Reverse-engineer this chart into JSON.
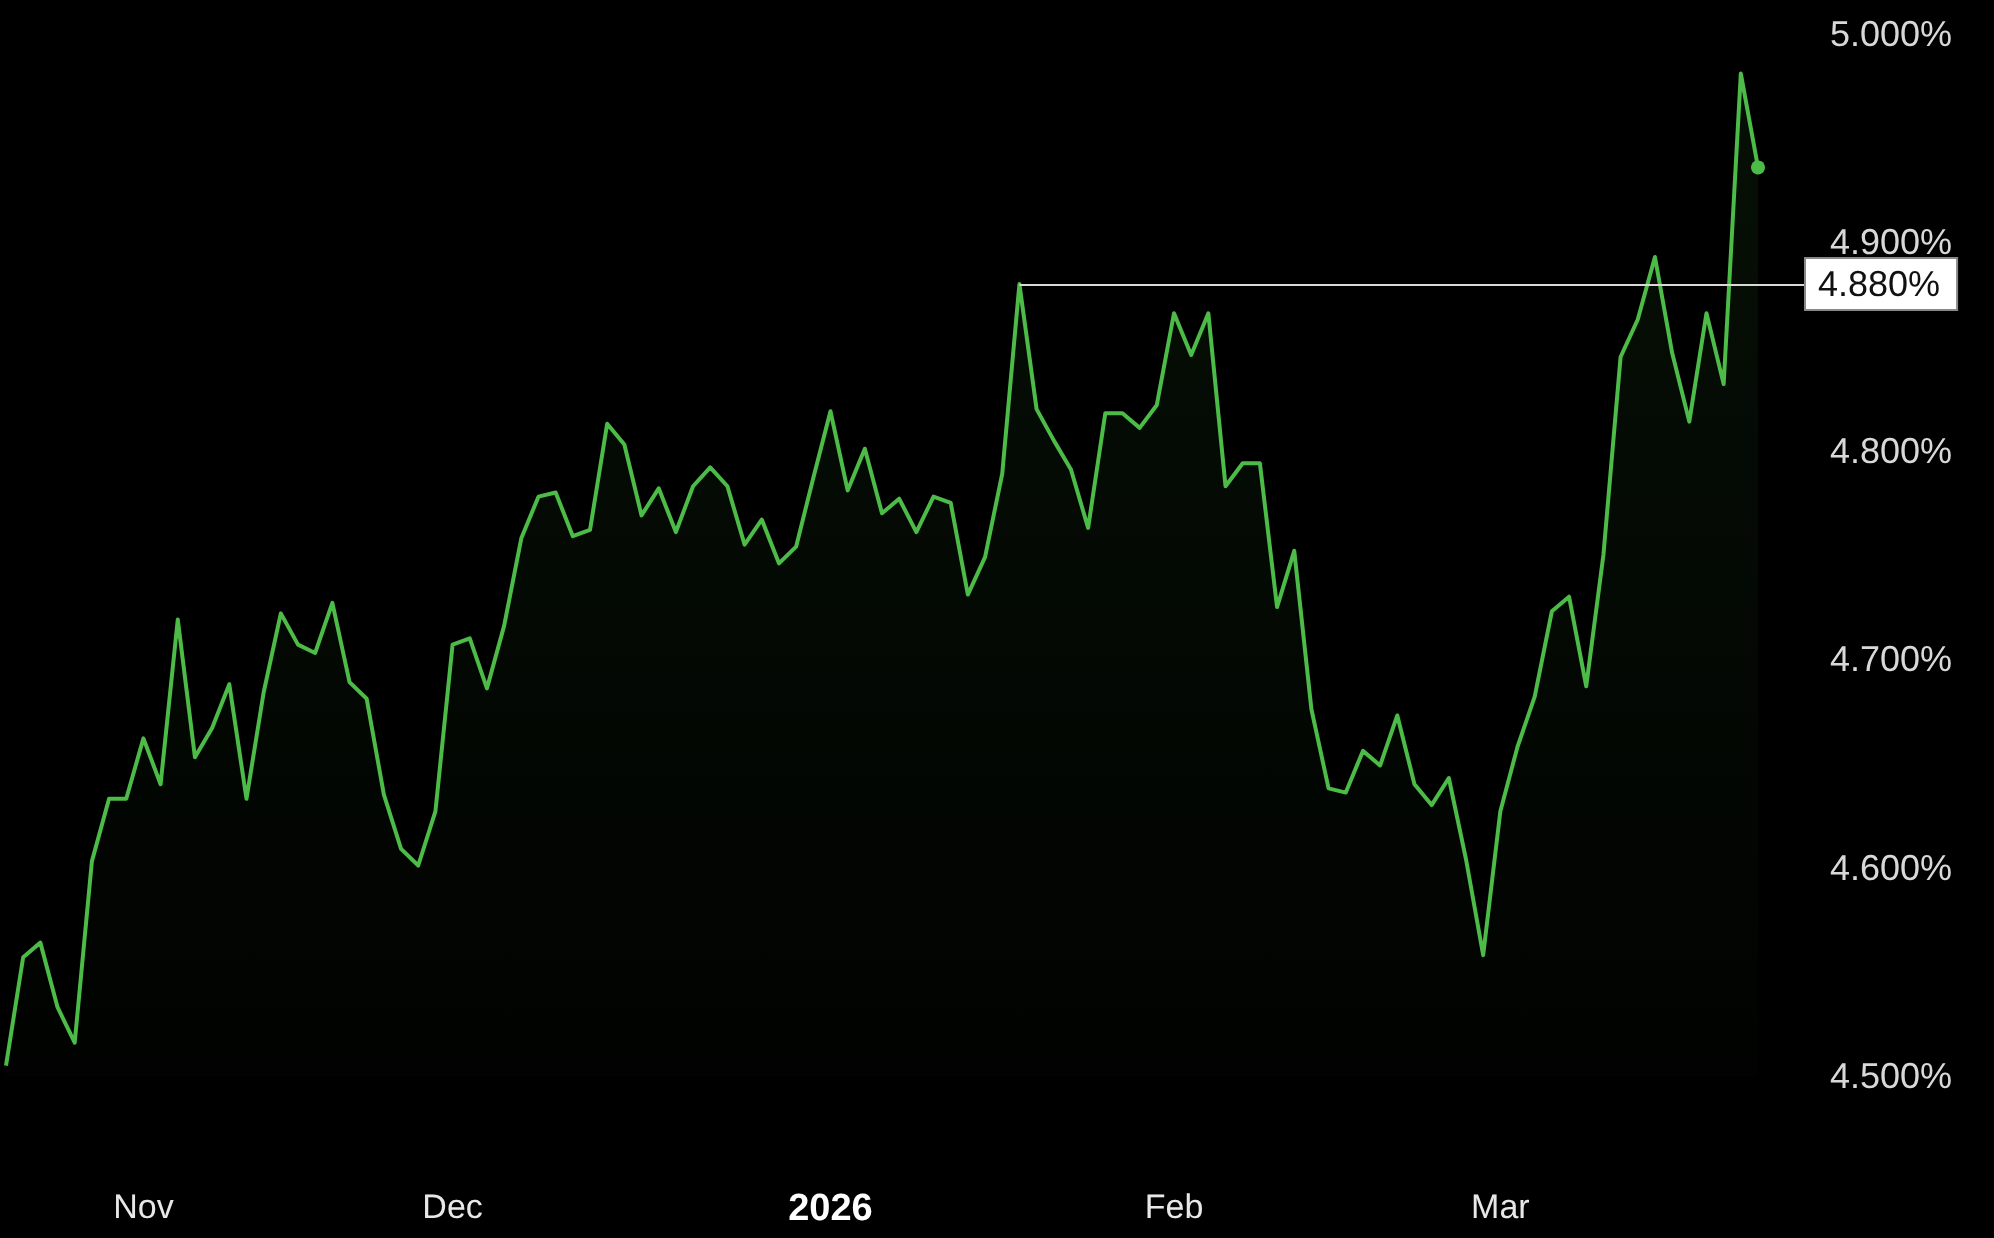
{
  "chart_data": {
    "type": "area",
    "categories": [
      null,
      null,
      null,
      null,
      null,
      null,
      null,
      null,
      "Nov",
      null,
      null,
      null,
      null,
      null,
      null,
      null,
      null,
      null,
      null,
      null,
      null,
      null,
      null,
      null,
      null,
      null,
      "Dec",
      null,
      null,
      null,
      null,
      null,
      null,
      null,
      null,
      null,
      null,
      null,
      null,
      null,
      null,
      null,
      null,
      null,
      null,
      null,
      null,
      null,
      "2026",
      null,
      null,
      null,
      null,
      null,
      null,
      null,
      null,
      null,
      null,
      null,
      null,
      null,
      null,
      null,
      null,
      null,
      null,
      null,
      "Feb",
      null,
      null,
      null,
      null,
      null,
      null,
      null,
      null,
      null,
      null,
      null,
      null,
      null,
      null,
      null,
      null,
      null,
      null,
      "Mar",
      null,
      null,
      null,
      null,
      null,
      null,
      null,
      null,
      null,
      null,
      null,
      null,
      null,
      null,
      null
    ],
    "series": [
      {
        "color": "#4cbb47",
        "values": [
          4.505,
          4.557,
          4.564,
          4.533,
          4.516,
          4.603,
          4.633,
          4.633,
          4.662,
          4.64,
          4.719,
          4.653,
          4.667,
          4.688,
          4.633,
          4.684,
          4.722,
          4.707,
          4.703,
          4.727,
          4.689,
          4.681,
          4.635,
          4.609,
          4.601,
          4.627,
          4.707,
          4.71,
          4.686,
          4.716,
          4.758,
          4.778,
          4.78,
          4.759,
          4.762,
          4.813,
          4.803,
          4.769,
          4.782,
          4.761,
          4.783,
          4.792,
          4.783,
          4.755,
          4.767,
          4.746,
          4.754,
          4.787,
          4.819,
          4.781,
          4.801,
          4.77,
          4.777,
          4.761,
          4.778,
          4.775,
          4.731,
          4.749,
          4.789,
          4.88,
          4.82,
          4.805,
          4.791,
          4.763,
          4.818,
          4.818,
          4.811,
          4.822,
          4.866,
          4.846,
          4.866,
          4.783,
          4.794,
          4.794,
          4.725,
          4.752,
          4.676,
          4.638,
          4.636,
          4.656,
          4.649,
          4.673,
          4.64,
          4.63,
          4.643,
          4.604,
          4.558,
          4.627,
          4.658,
          4.682,
          4.723,
          4.73,
          4.687,
          4.75,
          4.845,
          4.863,
          4.893,
          4.847,
          4.814,
          4.866,
          4.832,
          4.981,
          4.936
        ]
      }
    ],
    "ylim": [
      4.5,
      5.0
    ],
    "yticks": [
      {
        "value": 4.5,
        "label": "4.500%"
      },
      {
        "value": 4.6,
        "label": "4.600%"
      },
      {
        "value": 4.7,
        "label": "4.700%"
      },
      {
        "value": 4.8,
        "label": "4.800%"
      },
      {
        "value": 4.9,
        "label": "4.900%"
      },
      {
        "value": 5.0,
        "label": "5.000%"
      }
    ],
    "ref_lines": [
      {
        "axis": "y",
        "value": 4.88,
        "label": "4.880%",
        "color": "#d8d8d8"
      }
    ],
    "grid": false
  }
}
